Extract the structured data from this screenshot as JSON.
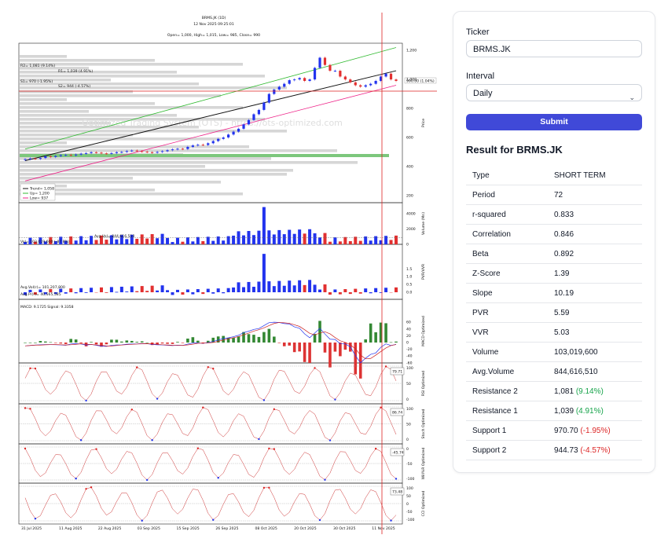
{
  "chart": {
    "title": "BRMS.JK (1D)",
    "timestamp": "12 Nov 2025 09:25:01",
    "ohlc_line": "Open= 1,000, High= 1,015, Low= 985, Close= 990",
    "watermark": "Optimized Trading System (OTS) - https://ots-optimized.com",
    "last_price_label": "990.00 (1.04%)",
    "price_levels": [
      "R2= 1,081 (9.14%)",
      "R1= 1,039 (4.91%)",
      "S1= 970 (-1.95%)",
      "S2= 944 (-4.57%)"
    ],
    "legend": [
      "Trend= 1,058",
      "Up= 1,200",
      "Low= 937"
    ],
    "volume_avg_label": "Avg.Vol= 844,616,510",
    "volume_last_label": "Vol= 103,019,600 (-87.8%)",
    "vvr_labels": [
      "Avg.Vol(r)= 101,207,800",
      "Avg.Pr(r)= 40,565,585"
    ],
    "macd_label": "MACD: 9.1725  Signal: 9.3358",
    "rsi_value": "79.71",
    "stoch_value": "86.74",
    "willr_value": "-45.74",
    "cci_value": "73.48",
    "y_labels": {
      "price": "Price",
      "volume": "Volume (Mn)",
      "vvr": "PVR/VVR",
      "macd": "MACD Optimized",
      "rsi": "RSI Optimized",
      "stoch": "Stoch Optimized",
      "willr": "Will%R Optimized",
      "cci": "CCI Optimized"
    },
    "x_dates": [
      "31 Jul 2025",
      "11 Aug 2025",
      "22 Aug 2025",
      "03 Sep 2025",
      "15 Sep 2025",
      "26 Sep 2025",
      "08 Oct 2025",
      "20 Oct 2025",
      "30 Oct 2025",
      "11 Nov 2025"
    ],
    "price_ticks": [
      "1,200",
      "1,000",
      "800",
      "600",
      "400",
      "200"
    ],
    "volume_ticks": [
      "4000",
      "2000",
      "0"
    ],
    "vvr_ticks": [
      "1.5",
      "1.0",
      "0.5",
      "0.0"
    ],
    "macd_ticks": [
      "60",
      "40",
      "20",
      "0",
      "-20",
      "-40",
      "-60"
    ],
    "osc_ticks": [
      "100",
      "50",
      "0"
    ],
    "willr_ticks": [
      "0",
      "-50",
      "-100"
    ],
    "cci_ticks": [
      "100",
      "50",
      "0",
      "-50",
      "-100"
    ],
    "closes": [
      450,
      455,
      452,
      458,
      470,
      465,
      472,
      478,
      480,
      476,
      482,
      488,
      492,
      498,
      495,
      490,
      488,
      492,
      498,
      500,
      506,
      510,
      505,
      502,
      498,
      495,
      500,
      505,
      512,
      518,
      522,
      520,
      535,
      545,
      550,
      548,
      560,
      575,
      590,
      600,
      620,
      640,
      660,
      690,
      720,
      760,
      790,
      840,
      900,
      930,
      950,
      970,
      995,
      1000,
      1010,
      990,
      1000,
      1080,
      1150,
      1100,
      1060,
      1060,
      1020,
      1000,
      980,
      960,
      950,
      960,
      970,
      990,
      1020,
      1040,
      1000,
      990
    ]
  },
  "form": {
    "ticker_label": "Ticker",
    "ticker_value": "BRMS.JK",
    "interval_label": "Interval",
    "interval_value": "Daily",
    "submit_label": "Submit"
  },
  "result": {
    "title": "Result for BRMS.JK",
    "rows": [
      {
        "label": "Type",
        "value": "SHORT TERM",
        "pct": ""
      },
      {
        "label": "Period",
        "value": "72",
        "pct": ""
      },
      {
        "label": "r-squared",
        "value": "0.833",
        "pct": ""
      },
      {
        "label": "Correlation",
        "value": "0.846",
        "pct": ""
      },
      {
        "label": "Beta",
        "value": "0.892",
        "pct": ""
      },
      {
        "label": "Z-Score",
        "value": "1.39",
        "pct": ""
      },
      {
        "label": "Slope",
        "value": "10.19",
        "pct": ""
      },
      {
        "label": "PVR",
        "value": "5.59",
        "pct": ""
      },
      {
        "label": "VVR",
        "value": "5.03",
        "pct": ""
      },
      {
        "label": "Volume",
        "value": "103,019,600",
        "pct": ""
      },
      {
        "label": "Avg.Volume",
        "value": "844,616,510",
        "pct": ""
      },
      {
        "label": "Resistance 2",
        "value": "1,081",
        "pct": "(9.14%)"
      },
      {
        "label": "Resistance 1",
        "value": "1,039",
        "pct": "(4.91%)"
      },
      {
        "label": "Support 1",
        "value": "970.70",
        "pct": "(-1.95%)"
      },
      {
        "label": "Support 2",
        "value": "944.73",
        "pct": "(-4.57%)"
      }
    ]
  },
  "colors": {
    "accent": "#4049d8",
    "up": "#2233ee",
    "down": "#e23030",
    "positive": "#16a34a",
    "negative": "#dc2626"
  }
}
